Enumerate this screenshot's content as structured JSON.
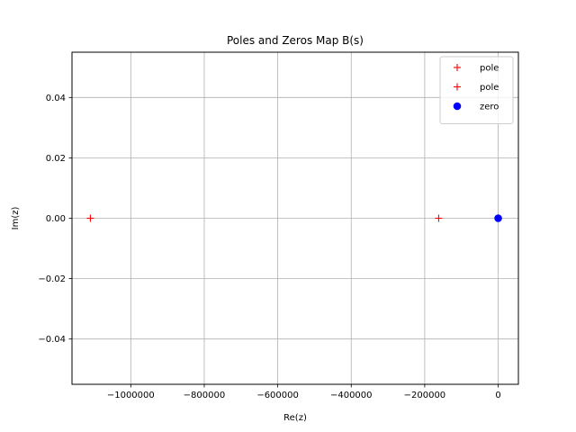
{
  "chart_data": {
    "type": "scatter",
    "title": "Poles and Zeros Map B(s)",
    "xlabel": "Re(z)",
    "ylabel": "Im(z)",
    "xlim": [
      -1160000,
      55000
    ],
    "ylim": [
      -0.055,
      0.055
    ],
    "xticks": [
      -1000000,
      -800000,
      -600000,
      -400000,
      -200000,
      0
    ],
    "xtick_labels": [
      "−1000000",
      "−800000",
      "−600000",
      "−400000",
      "−200000",
      "0"
    ],
    "yticks": [
      0.04,
      0.02,
      0.0,
      -0.02,
      -0.04
    ],
    "ytick_labels": [
      "0.04",
      "0.02",
      "0.00",
      "−0.02",
      "−0.04"
    ],
    "grid": true,
    "legend_position": "top-right",
    "series": [
      {
        "name": "pole",
        "marker": "plus",
        "color": "#ff0000",
        "points": [
          {
            "x": -1110000,
            "y": 0
          }
        ]
      },
      {
        "name": "pole",
        "marker": "plus",
        "color": "#ff0000",
        "points": [
          {
            "x": -162000,
            "y": 0
          }
        ]
      },
      {
        "name": "zero",
        "marker": "circle",
        "color": "#0000ff",
        "points": [
          {
            "x": 0,
            "y": 0
          }
        ]
      }
    ]
  }
}
